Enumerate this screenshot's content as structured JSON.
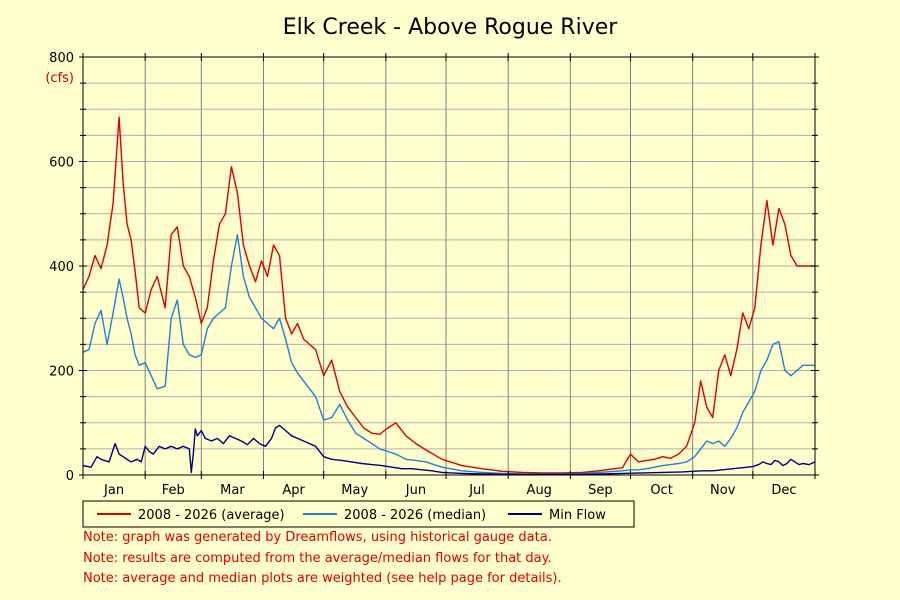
{
  "chart_data": {
    "type": "line",
    "title": "Elk Creek - Above Rogue River",
    "ylabel": "(cfs)",
    "xlabel": "",
    "ylim": [
      0,
      800
    ],
    "yticks": [
      0,
      200,
      400,
      600,
      800
    ],
    "xlim": [
      1,
      366
    ],
    "grid": true,
    "legend_position": "bottom",
    "months": [
      "Jan",
      "Feb",
      "Mar",
      "Apr",
      "May",
      "Jun",
      "Jul",
      "Aug",
      "Sep",
      "Oct",
      "Nov",
      "Dec"
    ],
    "series": [
      {
        "name": "2008 - 2026 (average)",
        "color": "#dd0000",
        "x": [
          1,
          4,
          7,
          10,
          13,
          16,
          19,
          21,
          23,
          25,
          27,
          29,
          32,
          35,
          38,
          42,
          45,
          48,
          51,
          54,
          57,
          60,
          63,
          66,
          69,
          72,
          75,
          78,
          81,
          84,
          87,
          90,
          93,
          96,
          99,
          102,
          105,
          108,
          111,
          114,
          117,
          121,
          125,
          129,
          133,
          137,
          141,
          145,
          149,
          153,
          157,
          162,
          167,
          172,
          180,
          190,
          200,
          210,
          220,
          230,
          240,
          250,
          258,
          262,
          266,
          270,
          274,
          278,
          282,
          286,
          290,
          294,
          298,
          302,
          306,
          309,
          312,
          315,
          318,
          321,
          324,
          327,
          330,
          333,
          336,
          339,
          342,
          345,
          348,
          351,
          354,
          357,
          360,
          363,
          366
        ],
        "y": [
          355,
          380,
          420,
          395,
          440,
          520,
          685,
          560,
          480,
          450,
          390,
          320,
          310,
          355,
          380,
          320,
          460,
          475,
          400,
          380,
          340,
          290,
          320,
          410,
          480,
          500,
          590,
          540,
          440,
          400,
          370,
          410,
          380,
          440,
          420,
          300,
          270,
          290,
          260,
          250,
          240,
          190,
          220,
          160,
          130,
          110,
          90,
          80,
          78,
          90,
          100,
          75,
          60,
          48,
          30,
          18,
          12,
          7,
          5,
          4,
          4,
          5,
          8,
          10,
          12,
          14,
          40,
          25,
          28,
          30,
          35,
          32,
          40,
          55,
          100,
          180,
          130,
          110,
          200,
          230,
          190,
          240,
          310,
          280,
          320,
          440,
          525,
          440,
          510,
          480,
          420,
          400,
          400,
          400,
          400
        ]
      },
      {
        "name": "2008 - 2026 (median)",
        "color": "#2080d0",
        "x": [
          1,
          4,
          7,
          10,
          13,
          16,
          19,
          21,
          23,
          25,
          27,
          29,
          32,
          35,
          38,
          42,
          45,
          48,
          51,
          54,
          57,
          60,
          63,
          66,
          69,
          72,
          75,
          78,
          81,
          84,
          87,
          90,
          93,
          96,
          99,
          102,
          105,
          108,
          111,
          114,
          117,
          121,
          125,
          129,
          133,
          137,
          141,
          145,
          149,
          153,
          157,
          162,
          167,
          172,
          180,
          190,
          200,
          210,
          220,
          230,
          240,
          250,
          258,
          262,
          266,
          270,
          274,
          278,
          282,
          286,
          290,
          294,
          298,
          302,
          306,
          309,
          312,
          315,
          318,
          321,
          324,
          327,
          330,
          333,
          336,
          339,
          342,
          345,
          348,
          351,
          354,
          357,
          360,
          363,
          366
        ],
        "y": [
          235,
          240,
          290,
          315,
          250,
          310,
          375,
          340,
          300,
          270,
          230,
          210,
          215,
          190,
          165,
          170,
          300,
          335,
          250,
          230,
          225,
          230,
          280,
          300,
          310,
          320,
          400,
          460,
          380,
          340,
          320,
          300,
          290,
          280,
          300,
          260,
          215,
          195,
          180,
          165,
          150,
          105,
          110,
          135,
          105,
          80,
          70,
          60,
          50,
          45,
          40,
          30,
          28,
          25,
          15,
          8,
          5,
          3,
          2,
          2,
          2,
          3,
          5,
          6,
          7,
          8,
          10,
          10,
          12,
          15,
          18,
          20,
          22,
          25,
          35,
          50,
          65,
          60,
          65,
          55,
          70,
          90,
          120,
          140,
          160,
          200,
          220,
          250,
          255,
          200,
          190,
          200,
          210,
          210,
          210
        ]
      },
      {
        "name": "Min Flow",
        "color": "#00007a",
        "x": [
          1,
          5,
          8,
          10,
          14,
          17,
          19,
          21,
          23,
          25,
          28,
          30,
          32,
          34,
          36,
          39,
          42,
          45,
          48,
          51,
          54,
          55,
          56,
          57,
          58,
          60,
          62,
          65,
          68,
          71,
          74,
          77,
          80,
          83,
          86,
          89,
          92,
          95,
          97,
          99,
          102,
          105,
          108,
          111,
          114,
          117,
          121,
          125,
          130,
          135,
          140,
          145,
          150,
          155,
          160,
          165,
          170,
          175,
          180,
          190,
          200,
          210,
          220,
          230,
          240,
          250,
          260,
          270,
          280,
          290,
          300,
          305,
          310,
          315,
          320,
          325,
          330,
          335,
          338,
          340,
          342,
          344,
          346,
          348,
          350,
          352,
          354,
          356,
          358,
          360,
          363,
          366
        ],
        "y": [
          18,
          15,
          35,
          30,
          25,
          60,
          40,
          35,
          30,
          25,
          30,
          25,
          55,
          45,
          40,
          55,
          50,
          55,
          50,
          55,
          50,
          5,
          40,
          88,
          75,
          85,
          70,
          65,
          70,
          60,
          75,
          70,
          65,
          58,
          70,
          60,
          55,
          70,
          90,
          95,
          85,
          75,
          70,
          65,
          60,
          55,
          35,
          30,
          28,
          25,
          22,
          20,
          18,
          15,
          12,
          12,
          10,
          8,
          5,
          3,
          2,
          1,
          1,
          1,
          1,
          1,
          2,
          3,
          4,
          5,
          6,
          7,
          8,
          8,
          10,
          12,
          14,
          16,
          20,
          25,
          22,
          20,
          28,
          25,
          18,
          22,
          30,
          25,
          20,
          22,
          20,
          25
        ]
      }
    ],
    "notes": [
      "Note: graph was generated by Dreamflows, using historical gauge data.",
      "Note: results are computed from the average/median flows for that day.",
      "Note: average and median plots are weighted (see help page for details)."
    ]
  }
}
